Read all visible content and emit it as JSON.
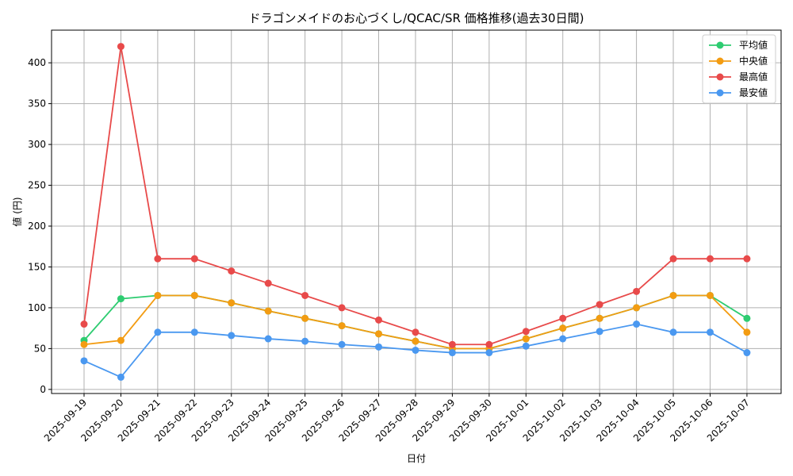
{
  "chart_data": {
    "type": "line",
    "title": "ドラゴンメイドのお心づくし/QCAC/SR 価格推移(過去30日間)",
    "xlabel": "日付",
    "ylabel": "値 (円)",
    "ylim": [
      -5,
      440
    ],
    "yticks": [
      0,
      50,
      100,
      150,
      200,
      250,
      300,
      350,
      400
    ],
    "grid": true,
    "legend_position": "top-right",
    "categories": [
      "2025-09-19",
      "2025-09-20",
      "2025-09-21",
      "2025-09-22",
      "2025-09-23",
      "2025-09-24",
      "2025-09-25",
      "2025-09-26",
      "2025-09-27",
      "2025-09-28",
      "2025-09-29",
      "2025-09-30",
      "2025-10-01",
      "2025-10-02",
      "2025-10-03",
      "2025-10-04",
      "2025-10-05",
      "2025-10-06",
      "2025-10-07"
    ],
    "series": [
      {
        "name": "平均値",
        "color": "#2ecc71",
        "values": [
          60,
          111,
          115,
          115,
          106,
          96,
          87,
          78,
          68,
          59,
          50,
          50,
          62,
          75,
          87,
          100,
          115,
          115,
          87
        ]
      },
      {
        "name": "中央値",
        "color": "#f39c12",
        "values": [
          55,
          60,
          115,
          115,
          106,
          96,
          87,
          78,
          68,
          59,
          50,
          50,
          62,
          75,
          87,
          100,
          115,
          115,
          70
        ]
      },
      {
        "name": "最高値",
        "color": "#e84a4a",
        "values": [
          80,
          420,
          160,
          160,
          145,
          130,
          115,
          100,
          85,
          70,
          55,
          55,
          71,
          87,
          104,
          120,
          160,
          160,
          160
        ]
      },
      {
        "name": "最安値",
        "color": "#4a98f0",
        "values": [
          35,
          15,
          70,
          70,
          66,
          62,
          59,
          55,
          52,
          48,
          45,
          45,
          53,
          62,
          71,
          80,
          70,
          70,
          45
        ]
      }
    ]
  }
}
